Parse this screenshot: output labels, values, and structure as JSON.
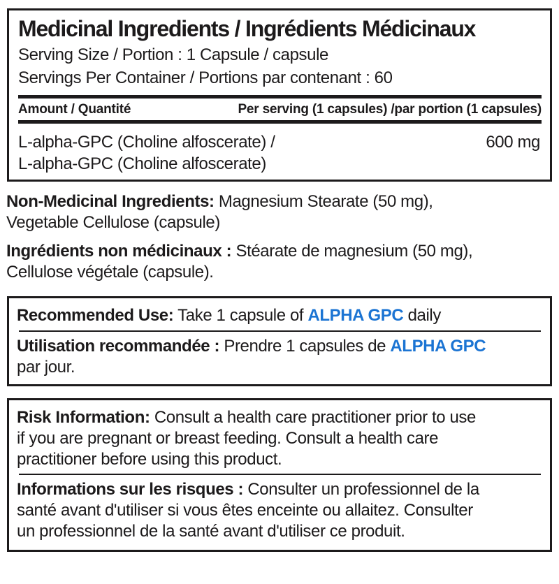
{
  "colors": {
    "brand_blue": "#1b74d3",
    "text_black": "#1c1a1b"
  },
  "medicinal_panel": {
    "title": "Medicinal Ingredients / Ingrédients Médicinaux",
    "serving_size": "Serving Size / Portion : 1 Capsule / capsule",
    "servings_per_container": "Servings Per Container / Portions par contenant : 60",
    "columns": {
      "amount": "Amount / Quantité",
      "per_serving": "Per serving (1 capsules) /par portion (1 capsules)"
    },
    "rows": [
      {
        "name_line1": "L-alpha-GPC (Choline alfoscerate) /",
        "name_line2": "L-alpha-GPC (Choline alfoscerate)",
        "amount": "600 mg"
      }
    ]
  },
  "non_medicinal": {
    "en": {
      "label": "Non-Medicinal Ingredients:",
      "line1_rest": " Magnesium Stearate (50 mg),",
      "line2": "Vegetable Cellulose (capsule)"
    },
    "fr": {
      "label": "Ingrédients non médicinaux :",
      "line1_rest": " Stéarate de magnesium (50 mg),",
      "line2": "Cellulose végétale (capsule)."
    }
  },
  "recommended_use": {
    "en": {
      "label": "Recommended Use:",
      "before_brand": " Take 1 capsule of ",
      "brand": "ALPHA GPC",
      "after_brand": " daily"
    },
    "fr": {
      "label": "Utilisation recommandée :",
      "before_brand": " Prendre 1 capsules de ",
      "brand": "ALPHA GPC",
      "line2": "par jour."
    }
  },
  "risk": {
    "en": {
      "label": "Risk Information:",
      "line1_rest": " Consult a health care practitioner prior to use",
      "line2": "if you are pregnant or breast feeding. Consult a health care",
      "line3": "practitioner before using this product."
    },
    "fr": {
      "label": "Informations sur les risques :",
      "line1_rest": " Consulter un professionnel de la",
      "line2": "santé avant d'utiliser si vous êtes enceinte ou allaitez. Consulter",
      "line3": "un professionnel de la santé avant d'utiliser ce produit."
    }
  }
}
